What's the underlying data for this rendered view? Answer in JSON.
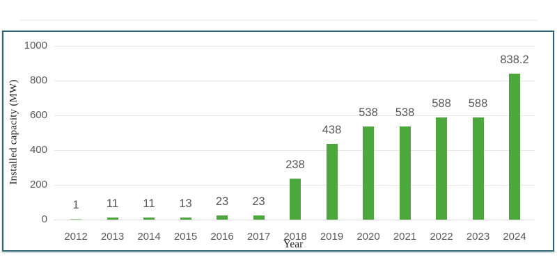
{
  "page": {
    "background": "#ffffff",
    "frame_border_color": "#336270",
    "top_divider_color": "#f2f2f2"
  },
  "chart_data": {
    "type": "bar",
    "title": "",
    "categories": [
      "2012",
      "2013",
      "2014",
      "2015",
      "2016",
      "2017",
      "2018",
      "2019",
      "2020",
      "2021",
      "2022",
      "2023",
      "2024"
    ],
    "values": [
      1,
      11,
      11,
      13,
      23,
      23,
      238,
      438,
      538,
      538,
      588,
      588,
      838.2
    ],
    "value_labels": [
      "1",
      "11",
      "11",
      "13",
      "23",
      "23",
      "238",
      "438",
      "538",
      "538",
      "588",
      "588",
      "838.2"
    ],
    "xlabel": "Year",
    "ylabel": "Installed capacity (MW)",
    "ylim": [
      0,
      1000
    ],
    "yticks": [
      0,
      200,
      400,
      600,
      800,
      1000
    ],
    "ytick_labels": [
      "0",
      "200",
      "400",
      "600",
      "800",
      "1000"
    ],
    "grid": true,
    "legend": "none",
    "bar_color": "#4CA83C",
    "grid_color": "#e8e8e8",
    "zero_line_color": "#d9d9d9",
    "tick_text_color": "#595959",
    "value_text_color": "#595959",
    "axis_title_color": "#1f1f1f"
  }
}
